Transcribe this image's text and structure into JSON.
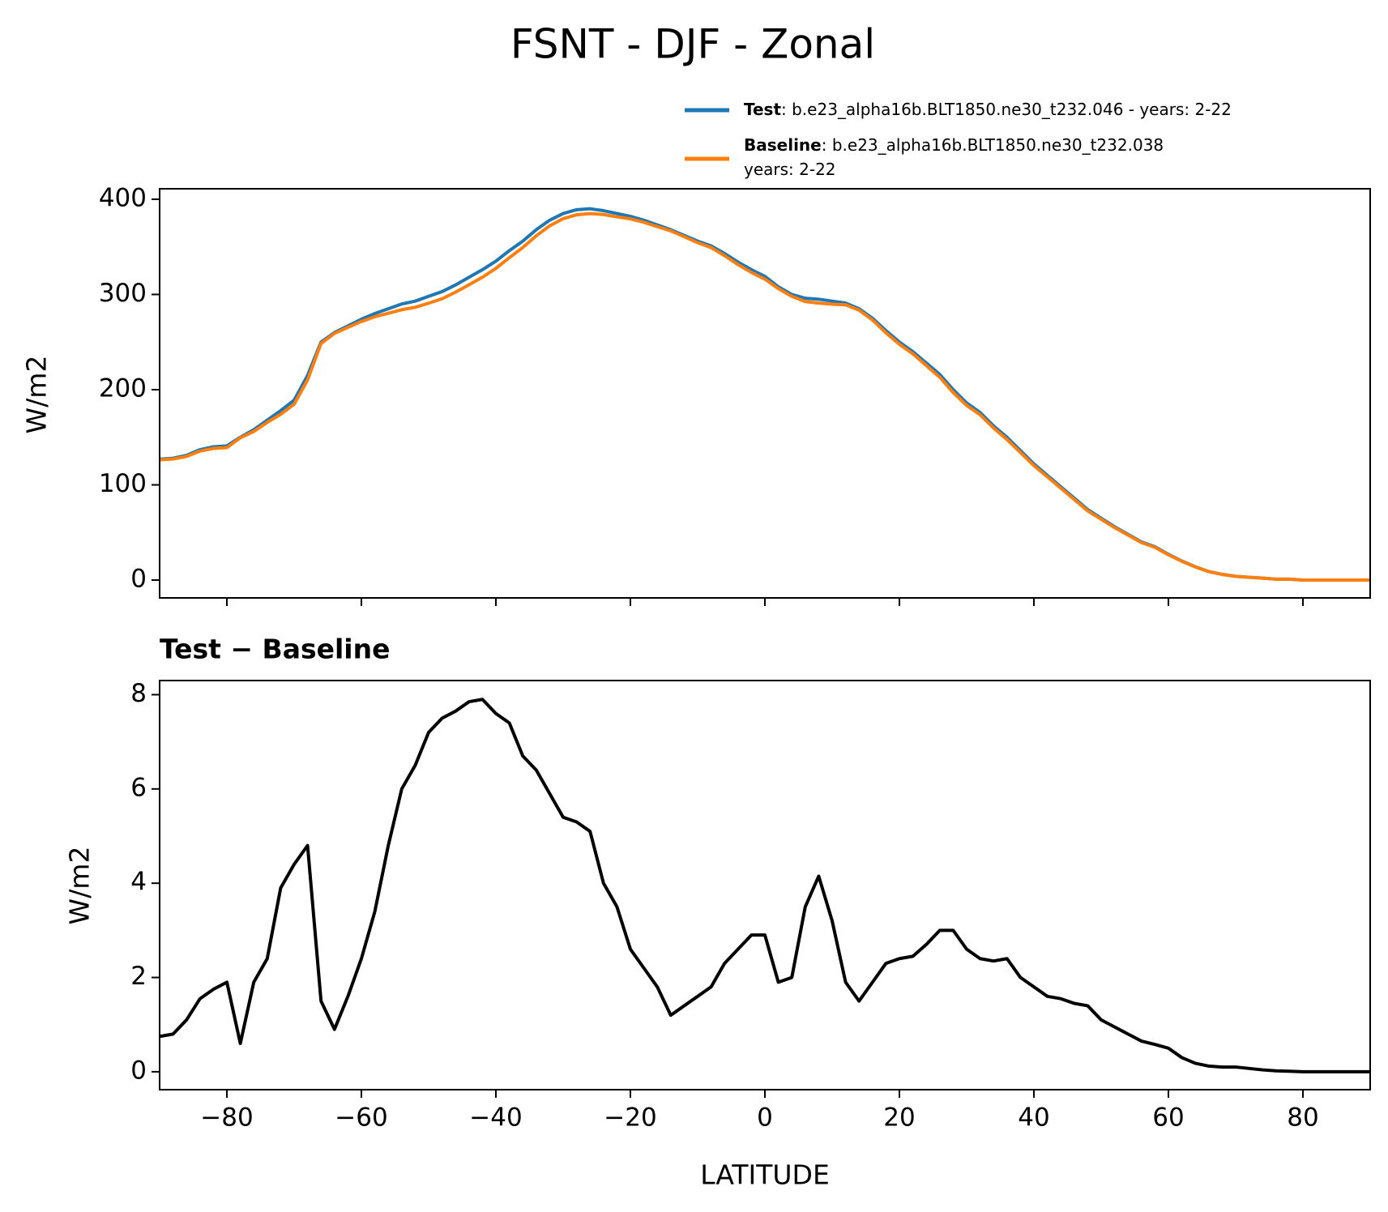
{
  "chart_data": [
    {
      "type": "line",
      "title": "FSNT - DJF - Zonal",
      "ylabel": "W/m2",
      "x": [
        -90,
        -88,
        -86,
        -84,
        -82,
        -80,
        -78,
        -76,
        -74,
        -72,
        -70,
        -68,
        -66,
        -64,
        -62,
        -60,
        -58,
        -56,
        -54,
        -52,
        -50,
        -48,
        -46,
        -44,
        -42,
        -40,
        -38,
        -36,
        -34,
        -32,
        -30,
        -28,
        -26,
        -24,
        -22,
        -20,
        -18,
        -16,
        -14,
        -12,
        -10,
        -8,
        -6,
        -4,
        -2,
        0,
        2,
        4,
        6,
        8,
        10,
        12,
        14,
        16,
        18,
        20,
        22,
        24,
        26,
        28,
        30,
        32,
        34,
        36,
        38,
        40,
        42,
        44,
        46,
        48,
        50,
        52,
        54,
        56,
        58,
        60,
        62,
        64,
        66,
        68,
        70,
        72,
        74,
        76,
        78,
        80,
        82,
        84,
        86,
        88,
        90
      ],
      "series": [
        {
          "name": "Test",
          "description": [
            ": b.e23_alpha16b.BLT1850.ne30_t232.046 - years: 2-22"
          ],
          "color": "#1f77b4",
          "values": [
            127,
            128,
            131,
            137,
            140,
            141,
            150,
            158,
            168,
            178,
            189,
            215,
            250,
            260,
            267,
            274,
            280,
            285,
            290,
            293,
            298,
            303,
            310,
            318,
            326,
            335,
            346,
            356,
            368,
            378,
            385,
            389,
            390,
            388,
            385,
            382,
            378,
            373,
            368,
            362,
            356,
            351,
            343,
            334,
            326,
            319,
            308,
            300,
            296,
            295,
            293,
            291,
            285,
            275,
            262,
            250,
            240,
            228,
            216,
            200,
            186,
            176,
            162,
            150,
            136,
            122,
            110,
            98,
            86,
            74,
            65,
            56,
            48,
            40,
            35,
            27,
            20,
            14,
            9,
            6,
            4,
            3,
            2,
            1,
            1,
            0,
            0,
            0,
            0,
            0,
            0
          ]
        },
        {
          "name": "Baseline",
          "description": [
            ": b.e23_alpha16b.BLT1850.ne30_t232.038",
            "years: 2-22"
          ],
          "color": "#ff7f0e",
          "values": [
            126.3,
            127.2,
            129.9,
            135.5,
            138.3,
            139.1,
            149.4,
            156.1,
            165.6,
            174.1,
            184.6,
            210.2,
            248.5,
            259.1,
            265.4,
            271.6,
            276.6,
            280.2,
            284,
            286.5,
            290.8,
            295.5,
            302.4,
            310.2,
            318.1,
            327.4,
            338.6,
            349.3,
            361.6,
            372.1,
            379.6,
            383.7,
            384.9,
            384,
            381.5,
            379.4,
            375.8,
            371.2,
            366.8,
            360.6,
            354.4,
            349.2,
            340.7,
            331.4,
            323.1,
            316.1,
            306.1,
            298,
            292.5,
            290.9,
            289.8,
            289.1,
            283.5,
            273.1,
            259.7,
            247.6,
            237.6,
            225.3,
            213,
            197,
            183.4,
            173.6,
            159.7,
            147.6,
            134,
            120.2,
            108.4,
            96.5,
            84.6,
            72.6,
            63.9,
            55.1,
            47.2,
            39.4,
            34.4,
            26.5,
            19.7,
            13.8,
            8.9,
            5.9,
            3.9,
            2.9,
            2.0,
            1.0,
            1.0,
            0,
            0,
            0,
            0,
            0,
            0
          ]
        }
      ],
      "xlim": [
        -90,
        90
      ],
      "xticks": [
        -80,
        -60,
        -40,
        -20,
        0,
        20,
        40,
        60,
        80
      ],
      "ylim": [
        -18.7,
        411
      ],
      "yticks": [
        0,
        100,
        200,
        300,
        400
      ],
      "legend": "upper right"
    },
    {
      "type": "line",
      "title": "Test − Baseline",
      "xlabel": "LATITUDE",
      "ylabel": "W/m2",
      "x": [
        -90,
        -88,
        -86,
        -84,
        -82,
        -80,
        -78,
        -76,
        -74,
        -72,
        -70,
        -68,
        -66,
        -64,
        -62,
        -60,
        -58,
        -56,
        -54,
        -52,
        -50,
        -48,
        -46,
        -44,
        -42,
        -40,
        -38,
        -36,
        -34,
        -32,
        -30,
        -28,
        -26,
        -24,
        -22,
        -20,
        -18,
        -16,
        -14,
        -12,
        -10,
        -8,
        -6,
        -4,
        -2,
        0,
        2,
        4,
        6,
        8,
        10,
        12,
        14,
        16,
        18,
        20,
        22,
        24,
        26,
        28,
        30,
        32,
        34,
        36,
        38,
        40,
        42,
        44,
        46,
        48,
        50,
        52,
        54,
        56,
        58,
        60,
        62,
        64,
        66,
        68,
        70,
        72,
        74,
        76,
        78,
        80,
        82,
        84,
        86,
        88,
        90
      ],
      "series": [
        {
          "color": "#000000",
          "values": [
            0.75,
            0.8,
            1.1,
            1.55,
            1.75,
            1.9,
            0.6,
            1.9,
            2.4,
            3.9,
            4.4,
            4.8,
            1.5,
            0.9,
            1.6,
            2.4,
            3.4,
            4.8,
            6.0,
            6.5,
            7.2,
            7.5,
            7.65,
            7.85,
            7.9,
            7.6,
            7.4,
            6.7,
            6.4,
            5.9,
            5.4,
            5.3,
            5.1,
            4.0,
            3.5,
            2.6,
            2.2,
            1.8,
            1.2,
            1.4,
            1.6,
            1.8,
            2.3,
            2.6,
            2.9,
            2.9,
            1.9,
            2.0,
            3.5,
            4.15,
            3.2,
            1.9,
            1.5,
            1.9,
            2.3,
            2.4,
            2.45,
            2.7,
            3.0,
            3.0,
            2.6,
            2.4,
            2.35,
            2.4,
            2.0,
            1.8,
            1.6,
            1.55,
            1.45,
            1.4,
            1.1,
            0.95,
            0.8,
            0.65,
            0.58,
            0.5,
            0.3,
            0.18,
            0.12,
            0.1,
            0.1,
            0.07,
            0.04,
            0.02,
            0.01,
            0,
            0,
            0,
            0,
            0,
            0
          ]
        }
      ],
      "xlim": [
        -90,
        90
      ],
      "xticks": [
        {
          "value": -80,
          "label": "−80"
        },
        {
          "value": -60,
          "label": "−60"
        },
        {
          "value": -40,
          "label": "−40"
        },
        {
          "value": -20,
          "label": "−20"
        },
        0,
        20,
        40,
        60,
        80
      ],
      "ylim": [
        -0.38,
        8.3
      ],
      "yticks": [
        0,
        2,
        4,
        6,
        8
      ]
    }
  ]
}
